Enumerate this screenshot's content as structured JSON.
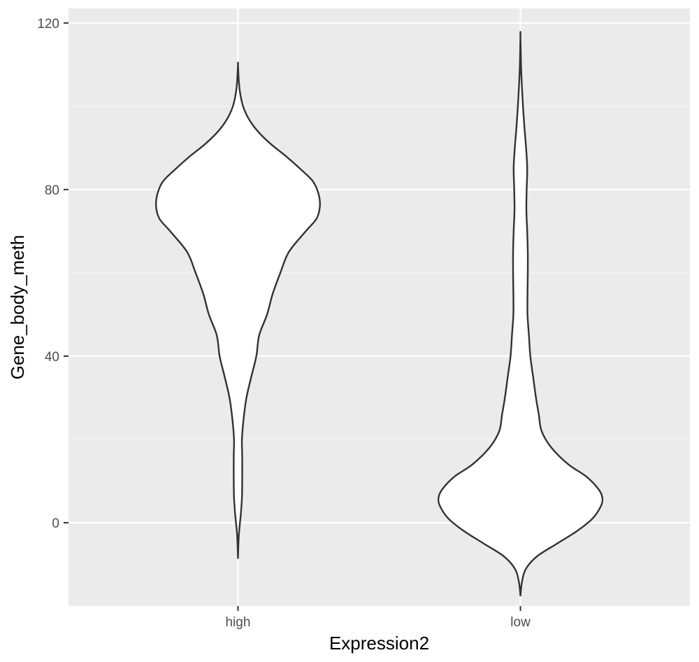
{
  "chart_data": {
    "type": "violin",
    "xlabel": "Expression2",
    "ylabel": "Gene_body_meth",
    "categories": [
      "high",
      "low"
    ],
    "ylim": [
      -20,
      123.5
    ],
    "y_ticks": [
      0,
      40,
      80,
      120
    ],
    "grid": true,
    "legend": "none",
    "colors": {
      "panel_background": "#EBEBEB",
      "grid_major": "#FFFFFF",
      "grid_minor": "#F4F4F4",
      "violin_fill": "#FFFFFF",
      "violin_outline": "#333333",
      "tick_text": "#4D4D4D",
      "tick_mark": "#333333",
      "title_text": "#000000"
    },
    "violins": [
      {
        "category": "high",
        "y_min": -8.5,
        "y_max": 110,
        "density_profile": [
          {
            "y": -8.5,
            "half_width": 0.0
          },
          {
            "y": -3,
            "half_width": 0.003
          },
          {
            "y": 2,
            "half_width": 0.01
          },
          {
            "y": 6,
            "half_width": 0.014
          },
          {
            "y": 10,
            "half_width": 0.015
          },
          {
            "y": 16,
            "half_width": 0.015
          },
          {
            "y": 20,
            "half_width": 0.014
          },
          {
            "y": 25,
            "half_width": 0.02
          },
          {
            "y": 30,
            "half_width": 0.03
          },
          {
            "y": 35,
            "half_width": 0.047
          },
          {
            "y": 40,
            "half_width": 0.065
          },
          {
            "y": 45,
            "half_width": 0.075
          },
          {
            "y": 50,
            "half_width": 0.103
          },
          {
            "y": 55,
            "half_width": 0.123
          },
          {
            "y": 60,
            "half_width": 0.15
          },
          {
            "y": 65,
            "half_width": 0.18
          },
          {
            "y": 70,
            "half_width": 0.24
          },
          {
            "y": 73,
            "half_width": 0.278
          },
          {
            "y": 76,
            "half_width": 0.29
          },
          {
            "y": 79,
            "half_width": 0.285
          },
          {
            "y": 82,
            "half_width": 0.265
          },
          {
            "y": 85,
            "half_width": 0.22
          },
          {
            "y": 88,
            "half_width": 0.17
          },
          {
            "y": 91,
            "half_width": 0.115
          },
          {
            "y": 94,
            "half_width": 0.07
          },
          {
            "y": 97,
            "half_width": 0.038
          },
          {
            "y": 100,
            "half_width": 0.018
          },
          {
            "y": 103,
            "half_width": 0.008
          },
          {
            "y": 106,
            "half_width": 0.003
          },
          {
            "y": 110,
            "half_width": 0.0
          }
        ]
      },
      {
        "category": "low",
        "y_min": -17.5,
        "y_max": 117,
        "density_profile": [
          {
            "y": -17.5,
            "half_width": 0.0
          },
          {
            "y": -14,
            "half_width": 0.006
          },
          {
            "y": -11,
            "half_width": 0.02
          },
          {
            "y": -8,
            "half_width": 0.06
          },
          {
            "y": -5,
            "half_width": 0.13
          },
          {
            "y": -2,
            "half_width": 0.2
          },
          {
            "y": 1,
            "half_width": 0.255
          },
          {
            "y": 4,
            "half_width": 0.285
          },
          {
            "y": 6,
            "half_width": 0.29
          },
          {
            "y": 8,
            "half_width": 0.277
          },
          {
            "y": 11,
            "half_width": 0.235
          },
          {
            "y": 14,
            "half_width": 0.17
          },
          {
            "y": 18,
            "half_width": 0.11
          },
          {
            "y": 22,
            "half_width": 0.075
          },
          {
            "y": 26,
            "half_width": 0.065
          },
          {
            "y": 30,
            "half_width": 0.055
          },
          {
            "y": 35,
            "half_width": 0.045
          },
          {
            "y": 40,
            "half_width": 0.035
          },
          {
            "y": 45,
            "half_width": 0.03
          },
          {
            "y": 50,
            "half_width": 0.025
          },
          {
            "y": 55,
            "half_width": 0.025
          },
          {
            "y": 60,
            "half_width": 0.026
          },
          {
            "y": 65,
            "half_width": 0.026
          },
          {
            "y": 70,
            "half_width": 0.024
          },
          {
            "y": 75,
            "half_width": 0.021
          },
          {
            "y": 80,
            "half_width": 0.022
          },
          {
            "y": 85,
            "half_width": 0.024
          },
          {
            "y": 90,
            "half_width": 0.02
          },
          {
            "y": 95,
            "half_width": 0.014
          },
          {
            "y": 100,
            "half_width": 0.009
          },
          {
            "y": 105,
            "half_width": 0.005
          },
          {
            "y": 110,
            "half_width": 0.002
          },
          {
            "y": 117,
            "half_width": 0.0
          }
        ]
      }
    ]
  }
}
